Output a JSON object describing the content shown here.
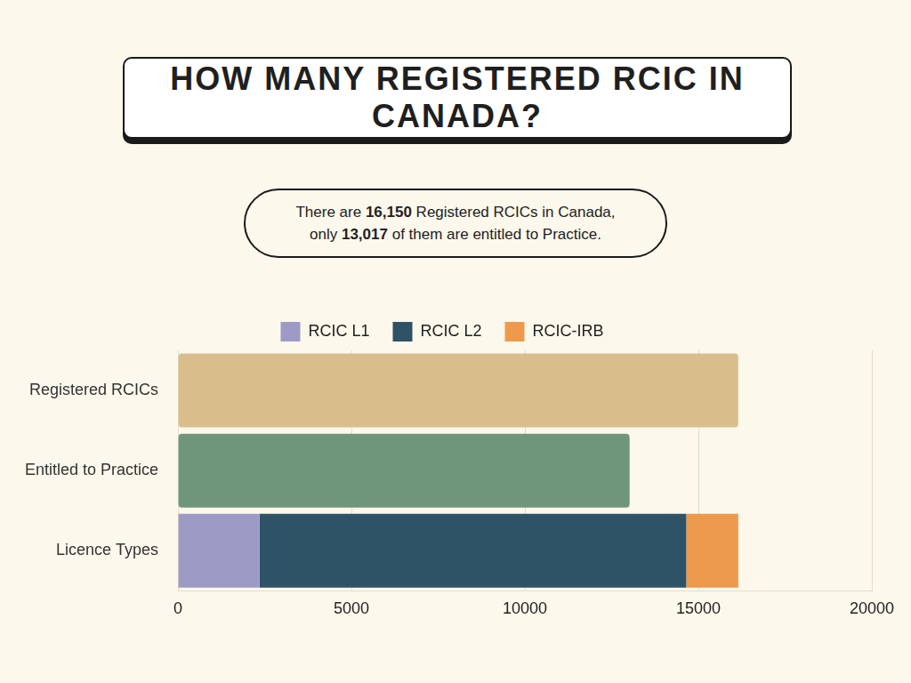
{
  "chart_data": {
    "type": "bar",
    "orientation": "horizontal",
    "stacked": true,
    "title": "HOW MANY REGISTERED RCIC IN CANADA?",
    "subtitle": [
      "There are 16,150 Registered RCICs in Canada,",
      "only 13,017 of them are entitled to Practice."
    ],
    "categories": [
      "Registered RCICs",
      "Entitled to Practice",
      "Licence Types"
    ],
    "series": [
      {
        "colors": [
          "#d9be8c",
          "#6f957a",
          null
        ],
        "values": [
          16150,
          13017,
          null
        ]
      },
      {
        "name": "RCIC L1",
        "color": "#9d9bc6",
        "values": [
          null,
          null,
          2350
        ]
      },
      {
        "name": "RCIC L2",
        "color": "#2e5266",
        "values": [
          null,
          null,
          12300
        ]
      },
      {
        "name": "RCIC-IRB",
        "color": "#ee9a4d",
        "values": [
          null,
          null,
          1500
        ]
      }
    ],
    "xlim": [
      0,
      20000
    ],
    "xticks": [
      0,
      5000,
      10000,
      15000,
      20000
    ],
    "grid": true,
    "legend": "top"
  }
}
